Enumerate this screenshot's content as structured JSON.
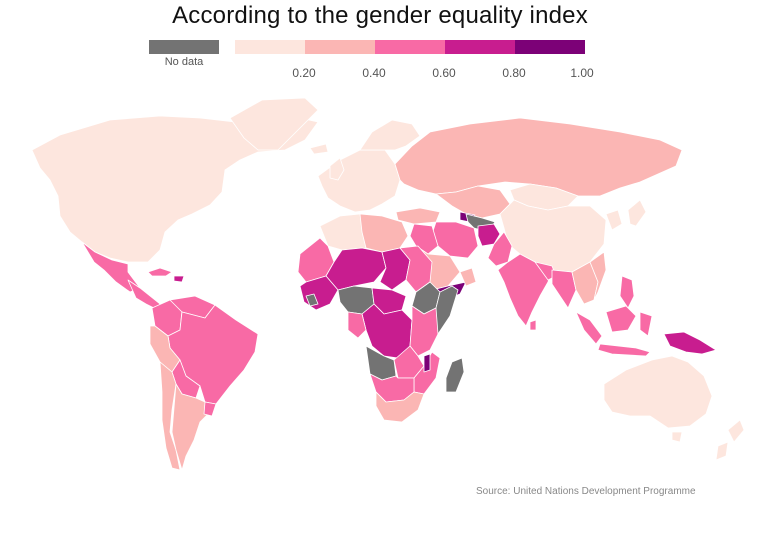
{
  "title": "According to the gender equality index",
  "legend": {
    "no_data_label": "No data",
    "no_data_color": "#737373",
    "bins": [
      {
        "color": "#fde6de"
      },
      {
        "color": "#fbb6b4"
      },
      {
        "color": "#f86aa5"
      },
      {
        "color": "#c81d8f"
      },
      {
        "color": "#7c0177"
      }
    ],
    "ticks": [
      "0.20",
      "0.40",
      "0.60",
      "0.80",
      "1.00"
    ]
  },
  "source": "Source: United Nations Development Programme"
}
